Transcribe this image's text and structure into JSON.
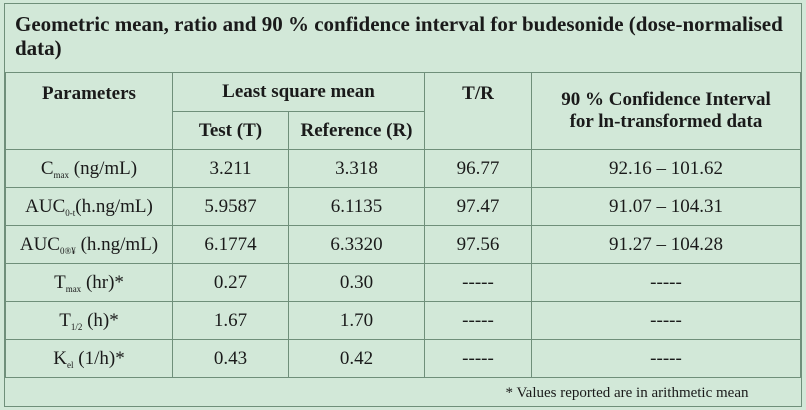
{
  "title": "Geometric mean, ratio and 90 % confidence interval for budesonide (dose-normalised data)",
  "headers": {
    "parameters": "Parameters",
    "lsm": "Least square mean",
    "tr": "T/R",
    "ci_line1": "90 % Confidence Interval",
    "ci_line2": "for ln-transformed data",
    "test": "Test (T)",
    "reference": "Reference (R)"
  },
  "rows": [
    {
      "param_main": "C",
      "param_sub": "max",
      "param_rest": " (ng/mL)",
      "test": "3.211",
      "reference": "3.318",
      "tr": "96.77",
      "ci": "92.16 – 101.62"
    },
    {
      "param_main": "AUC",
      "param_sub": "0-t",
      "param_rest": "(h.ng/mL)",
      "test": "5.9587",
      "reference": "6.1135",
      "tr": "97.47",
      "ci": "91.07 – 104.31"
    },
    {
      "param_main": "AUC",
      "param_sub": "0®¥",
      "param_rest": " (h.ng/mL)",
      "test": "6.1774",
      "reference": "6.3320",
      "tr": "97.56",
      "ci": "91.27 – 104.28"
    },
    {
      "param_main": "T",
      "param_sub": "max",
      "param_rest": " (hr)*",
      "test": "0.27",
      "reference": "0.30",
      "tr": "-----",
      "ci": "-----"
    },
    {
      "param_main": "T",
      "param_sub": "1/2",
      "param_rest": " (h)*",
      "test": "1.67",
      "reference": "1.70",
      "tr": "-----",
      "ci": "-----"
    },
    {
      "param_main": "K",
      "param_sub": "el",
      "param_rest": " (1/h)*",
      "test": "0.43",
      "reference": "0.42",
      "tr": "-----",
      "ci": "-----"
    }
  ],
  "footnote": "* Values reported are in arithmetic mean"
}
